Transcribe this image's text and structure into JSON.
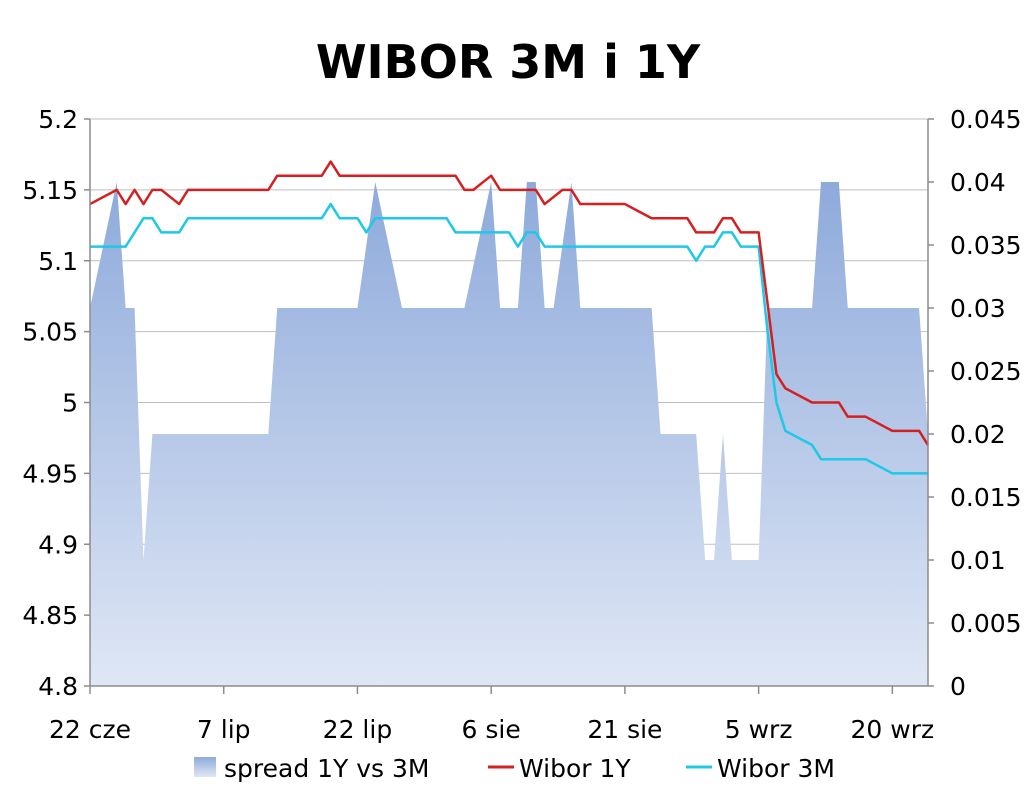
{
  "chart_data": {
    "type": "line",
    "title": "WIBOR 3M i 1Y",
    "x_tick_labels": [
      "22 cze",
      "7 lip",
      "22 lip",
      "6 sie",
      "21 sie",
      "5 wrz",
      "20 wrz"
    ],
    "x_tick_day_index": [
      0,
      15,
      30,
      45,
      60,
      75,
      90
    ],
    "y_left": {
      "min": 4.8,
      "max": 5.2,
      "ticks": [
        "5.2",
        "5.15",
        "5.1",
        "5.05",
        "5",
        "4.95",
        "4.9",
        "4.85",
        "4.8"
      ]
    },
    "y_right": {
      "min": 0,
      "max": 0.045,
      "ticks": [
        "0.045",
        "0.04",
        "0.035",
        "0.03",
        "0.025",
        "0.02",
        "0.015",
        "0.01",
        "0.005",
        "0"
      ]
    },
    "grid": true,
    "legend_position": "bottom",
    "series": [
      {
        "name": "spread 1Y vs 3M",
        "axis": "right",
        "style": "area",
        "color": "#8faadc",
        "x": [
          0,
          3,
          4,
          5,
          6,
          7,
          8,
          10,
          12,
          15,
          18,
          20,
          21,
          22,
          24,
          27,
          28,
          30,
          31,
          32,
          35,
          36,
          39,
          40,
          41,
          42,
          45,
          46,
          47,
          48,
          49,
          50,
          51,
          52,
          53,
          54,
          55,
          59,
          60,
          63,
          64,
          66,
          67,
          68,
          69,
          70,
          71,
          72,
          73,
          74,
          75,
          76,
          78,
          81,
          82,
          84,
          85,
          87,
          90,
          93,
          94
        ],
        "values": [
          0.03,
          0.04,
          0.03,
          0.03,
          0.01,
          0.02,
          0.02,
          0.02,
          0.02,
          0.02,
          0.02,
          0.02,
          0.03,
          0.03,
          0.03,
          0.03,
          0.03,
          0.03,
          0.035,
          0.04,
          0.03,
          0.03,
          0.03,
          0.03,
          0.03,
          0.03,
          0.04,
          0.03,
          0.03,
          0.03,
          0.04,
          0.04,
          0.03,
          0.03,
          0.035,
          0.04,
          0.03,
          0.03,
          0.03,
          0.03,
          0.02,
          0.02,
          0.02,
          0.02,
          0.01,
          0.01,
          0.02,
          0.01,
          0.01,
          0.01,
          0.01,
          0.03,
          0.03,
          0.03,
          0.04,
          0.04,
          0.03,
          0.03,
          0.03,
          0.03,
          0.02
        ]
      },
      {
        "name": "Wibor 1Y",
        "axis": "left",
        "style": "line",
        "color": "#d42020",
        "x": [
          0,
          3,
          4,
          5,
          6,
          7,
          8,
          10,
          11,
          12,
          15,
          18,
          20,
          21,
          24,
          26,
          27,
          28,
          30,
          31,
          32,
          35,
          36,
          39,
          40,
          41,
          42,
          43,
          45,
          46,
          47,
          48,
          49,
          50,
          51,
          53,
          54,
          55,
          59,
          60,
          63,
          64,
          66,
          67,
          68,
          69,
          70,
          71,
          72,
          73,
          74,
          75,
          76,
          77,
          78,
          81,
          82,
          84,
          85,
          87,
          90,
          93,
          94
        ],
        "values": [
          5.14,
          5.15,
          5.14,
          5.15,
          5.14,
          5.15,
          5.15,
          5.14,
          5.15,
          5.15,
          5.15,
          5.15,
          5.15,
          5.16,
          5.16,
          5.16,
          5.17,
          5.16,
          5.16,
          5.16,
          5.16,
          5.16,
          5.16,
          5.16,
          5.16,
          5.16,
          5.15,
          5.15,
          5.16,
          5.15,
          5.15,
          5.15,
          5.15,
          5.15,
          5.14,
          5.15,
          5.15,
          5.14,
          5.14,
          5.14,
          5.13,
          5.13,
          5.13,
          5.13,
          5.12,
          5.12,
          5.12,
          5.13,
          5.13,
          5.12,
          5.12,
          5.12,
          5.07,
          5.02,
          5.01,
          5.0,
          5.0,
          5.0,
          4.99,
          4.99,
          4.98,
          4.98,
          4.97
        ]
      },
      {
        "name": "Wibor 3M",
        "axis": "left",
        "style": "line",
        "color": "#1ec8e6",
        "x": [
          0,
          3,
          4,
          5,
          6,
          7,
          8,
          10,
          11,
          12,
          15,
          18,
          20,
          21,
          24,
          26,
          27,
          28,
          30,
          31,
          32,
          35,
          36,
          39,
          40,
          41,
          42,
          43,
          45,
          46,
          47,
          48,
          49,
          50,
          51,
          53,
          54,
          55,
          59,
          60,
          63,
          64,
          66,
          67,
          68,
          69,
          70,
          71,
          72,
          73,
          74,
          75,
          76,
          77,
          78,
          81,
          82,
          84,
          85,
          87,
          90,
          93,
          94
        ],
        "values": [
          5.11,
          5.11,
          5.11,
          5.12,
          5.13,
          5.13,
          5.12,
          5.12,
          5.13,
          5.13,
          5.13,
          5.13,
          5.13,
          5.13,
          5.13,
          5.13,
          5.14,
          5.13,
          5.13,
          5.12,
          5.13,
          5.13,
          5.13,
          5.13,
          5.13,
          5.12,
          5.12,
          5.12,
          5.12,
          5.12,
          5.12,
          5.11,
          5.12,
          5.12,
          5.11,
          5.11,
          5.11,
          5.11,
          5.11,
          5.11,
          5.11,
          5.11,
          5.11,
          5.11,
          5.1,
          5.11,
          5.11,
          5.12,
          5.12,
          5.11,
          5.11,
          5.11,
          5.05,
          5.0,
          4.98,
          4.97,
          4.96,
          4.96,
          4.96,
          4.96,
          4.95,
          4.95,
          4.95
        ]
      }
    ]
  }
}
